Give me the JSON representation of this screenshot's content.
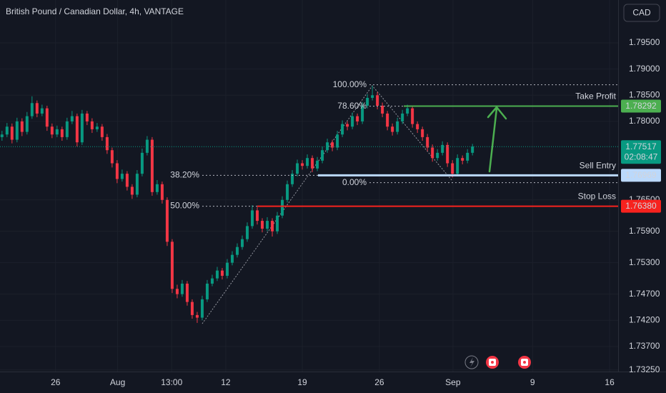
{
  "chart_data": {
    "type": "candlestick",
    "title": "British Pound / Canadian Dollar, 4h, VANTAGE",
    "currency": "CAD",
    "up_color": "#089981",
    "down_color": "#f23645",
    "ylim": [
      1.7322,
      1.8032
    ],
    "yticks": [
      {
        "value": 1.795,
        "label": "1.79500"
      },
      {
        "value": 1.79,
        "label": "1.79000"
      },
      {
        "value": 1.785,
        "label": "1.78500"
      },
      {
        "value": 1.78,
        "label": "1.78000"
      },
      {
        "value": 1.765,
        "label": "1.76500"
      },
      {
        "value": 1.759,
        "label": "1.75900"
      },
      {
        "value": 1.753,
        "label": "1.75300"
      },
      {
        "value": 1.747,
        "label": "1.74700"
      },
      {
        "value": 1.742,
        "label": "1.74200"
      },
      {
        "value": 1.737,
        "label": "1.73700"
      },
      {
        "value": 1.7325,
        "label": "1.73250"
      }
    ],
    "xlim": [
      -0.4,
      123.1
    ],
    "xticks": [
      {
        "value": 10.7,
        "label": "26"
      },
      {
        "value": 23.1,
        "label": "Aug"
      },
      {
        "value": 33.9,
        "label": "13:00"
      },
      {
        "value": 44.7,
        "label": "12"
      },
      {
        "value": 60,
        "label": "19"
      },
      {
        "value": 75.4,
        "label": "26"
      },
      {
        "value": 90.1,
        "label": "Sep"
      },
      {
        "value": 106,
        "label": "9"
      },
      {
        "value": 121.4,
        "label": "16"
      }
    ],
    "ohlc": [
      [
        1.777,
        1.7782,
        1.7763,
        1.7775
      ],
      [
        1.7775,
        1.7797,
        1.777,
        1.779
      ],
      [
        1.779,
        1.7796,
        1.7758,
        1.7765
      ],
      [
        1.7765,
        1.7807,
        1.776,
        1.78
      ],
      [
        1.78,
        1.7806,
        1.7772,
        1.778
      ],
      [
        1.778,
        1.7818,
        1.7775,
        1.781
      ],
      [
        1.781,
        1.7848,
        1.7805,
        1.7835
      ],
      [
        1.7835,
        1.784,
        1.7808,
        1.7815
      ],
      [
        1.7815,
        1.7832,
        1.781,
        1.7825
      ],
      [
        1.7825,
        1.783,
        1.7782,
        1.779
      ],
      [
        1.779,
        1.7796,
        1.7768,
        1.7775
      ],
      [
        1.7775,
        1.7792,
        1.777,
        1.7785
      ],
      [
        1.7785,
        1.779,
        1.7763,
        1.777
      ],
      [
        1.777,
        1.7807,
        1.7765,
        1.78
      ],
      [
        1.78,
        1.782,
        1.7795,
        1.781
      ],
      [
        1.781,
        1.7815,
        1.7752,
        1.776
      ],
      [
        1.776,
        1.7822,
        1.7755,
        1.7815
      ],
      [
        1.7815,
        1.782,
        1.7793,
        1.78
      ],
      [
        1.78,
        1.7806,
        1.7778,
        1.7785
      ],
      [
        1.7785,
        1.7797,
        1.778,
        1.779
      ],
      [
        1.779,
        1.7795,
        1.7763,
        1.777
      ],
      [
        1.777,
        1.7776,
        1.7738,
        1.7745
      ],
      [
        1.7745,
        1.775,
        1.7712,
        1.772
      ],
      [
        1.772,
        1.7726,
        1.7682,
        1.769
      ],
      [
        1.769,
        1.7708,
        1.7685,
        1.77
      ],
      [
        1.77,
        1.7705,
        1.7668,
        1.7675
      ],
      [
        1.7675,
        1.768,
        1.7652,
        1.766
      ],
      [
        1.766,
        1.7707,
        1.7655,
        1.77
      ],
      [
        1.77,
        1.7748,
        1.7695,
        1.774
      ],
      [
        1.774,
        1.7772,
        1.7735,
        1.7765
      ],
      [
        1.7765,
        1.777,
        1.7658,
        1.7665
      ],
      [
        1.7665,
        1.7688,
        1.766,
        1.768
      ],
      [
        1.768,
        1.7685,
        1.7643,
        1.765
      ],
      [
        1.765,
        1.7655,
        1.7562,
        1.757
      ],
      [
        1.757,
        1.7575,
        1.7472,
        1.748
      ],
      [
        1.748,
        1.7488,
        1.7462,
        1.747
      ],
      [
        1.747,
        1.7497,
        1.7465,
        1.749
      ],
      [
        1.749,
        1.7495,
        1.7448,
        1.7455
      ],
      [
        1.7455,
        1.746,
        1.7423,
        1.743
      ],
      [
        1.743,
        1.7436,
        1.7415,
        1.7425
      ],
      [
        1.7425,
        1.7467,
        1.742,
        1.746
      ],
      [
        1.746,
        1.7497,
        1.7455,
        1.749
      ],
      [
        1.749,
        1.7507,
        1.7485,
        1.75
      ],
      [
        1.75,
        1.7522,
        1.7495,
        1.7515
      ],
      [
        1.7515,
        1.752,
        1.7498,
        1.7505
      ],
      [
        1.7505,
        1.7537,
        1.75,
        1.753
      ],
      [
        1.753,
        1.7552,
        1.7525,
        1.7545
      ],
      [
        1.7545,
        1.7567,
        1.754,
        1.756
      ],
      [
        1.756,
        1.7582,
        1.7555,
        1.7575
      ],
      [
        1.7575,
        1.7607,
        1.757,
        1.76
      ],
      [
        1.76,
        1.764,
        1.7595,
        1.763
      ],
      [
        1.763,
        1.7636,
        1.7603,
        1.761
      ],
      [
        1.761,
        1.7615,
        1.7588,
        1.7595
      ],
      [
        1.7595,
        1.7617,
        1.759,
        1.761
      ],
      [
        1.761,
        1.7615,
        1.758,
        1.759
      ],
      [
        1.759,
        1.7627,
        1.7585,
        1.762
      ],
      [
        1.762,
        1.7657,
        1.7615,
        1.765
      ],
      [
        1.765,
        1.7687,
        1.7645,
        1.768
      ],
      [
        1.768,
        1.7707,
        1.7675,
        1.77
      ],
      [
        1.77,
        1.7727,
        1.7695,
        1.772
      ],
      [
        1.772,
        1.7726,
        1.7708,
        1.7715
      ],
      [
        1.7715,
        1.7737,
        1.771,
        1.773
      ],
      [
        1.773,
        1.7735,
        1.7703,
        1.771
      ],
      [
        1.771,
        1.7732,
        1.7705,
        1.7725
      ],
      [
        1.7725,
        1.7752,
        1.772,
        1.7745
      ],
      [
        1.7745,
        1.7767,
        1.774,
        1.776
      ],
      [
        1.776,
        1.7765,
        1.7743,
        1.775
      ],
      [
        1.775,
        1.7782,
        1.7745,
        1.7775
      ],
      [
        1.7775,
        1.7802,
        1.777,
        1.7795
      ],
      [
        1.7795,
        1.78,
        1.7783,
        1.779
      ],
      [
        1.779,
        1.7817,
        1.7785,
        1.781
      ],
      [
        1.781,
        1.7815,
        1.7793,
        1.78
      ],
      [
        1.78,
        1.7837,
        1.7795,
        1.783
      ],
      [
        1.783,
        1.7852,
        1.7825,
        1.7845
      ],
      [
        1.7845,
        1.7868,
        1.784,
        1.785
      ],
      [
        1.785,
        1.7856,
        1.7823,
        1.783
      ],
      [
        1.783,
        1.7836,
        1.7808,
        1.7815
      ],
      [
        1.7815,
        1.782,
        1.7783,
        1.779
      ],
      [
        1.779,
        1.7796,
        1.7773,
        1.778
      ],
      [
        1.778,
        1.7807,
        1.7775,
        1.78
      ],
      [
        1.78,
        1.7822,
        1.7795,
        1.7815
      ],
      [
        1.7815,
        1.7832,
        1.781,
        1.7825
      ],
      [
        1.7825,
        1.783,
        1.7788,
        1.7795
      ],
      [
        1.7795,
        1.78,
        1.7778,
        1.7785
      ],
      [
        1.7785,
        1.779,
        1.7763,
        1.777
      ],
      [
        1.777,
        1.7776,
        1.7743,
        1.775
      ],
      [
        1.775,
        1.7756,
        1.7723,
        1.773
      ],
      [
        1.773,
        1.7747,
        1.7725,
        1.774
      ],
      [
        1.774,
        1.7762,
        1.7735,
        1.7755
      ],
      [
        1.7755,
        1.776,
        1.7713,
        1.772
      ],
      [
        1.772,
        1.7726,
        1.7693,
        1.77
      ],
      [
        1.77,
        1.7737,
        1.7695,
        1.773
      ],
      [
        1.773,
        1.7735,
        1.7718,
        1.7725
      ],
      [
        1.7725,
        1.7747,
        1.772,
        1.774
      ],
      [
        1.774,
        1.7757,
        1.7735,
        1.7752
      ]
    ],
    "fib_levels": [
      {
        "label": "100.00%",
        "value": 1.787
      },
      {
        "label": "78.60%",
        "value": 1.7829
      },
      {
        "label": "38.20%",
        "value": 1.7697
      },
      {
        "label": "0.00%",
        "value": 1.7683
      },
      {
        "label": "50.00%",
        "value": 1.7638
      }
    ],
    "levels": [
      {
        "name": "Take Profit",
        "value": 1.78292,
        "label": "1.78292",
        "color": "#4caf50"
      },
      {
        "name": "Sell Entry",
        "value": 1.76969,
        "label": "1.76969",
        "color": "#bbd9fb"
      },
      {
        "name": "Stop Loss",
        "value": 1.7638,
        "label": "1.76380",
        "color": "#f7221e"
      }
    ],
    "last_price": {
      "value": 1.77517,
      "label": "1.77517",
      "countdown": "02:08:47",
      "color": "#089981"
    }
  }
}
